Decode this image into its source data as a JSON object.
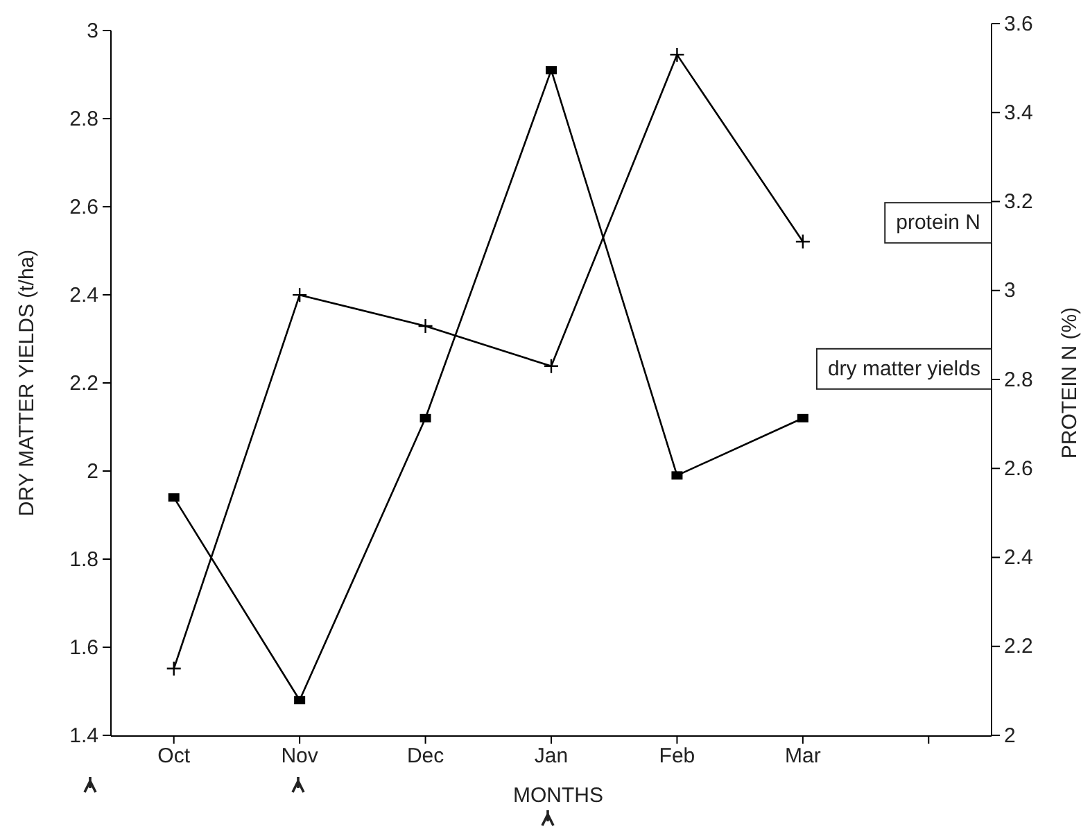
{
  "chart_data": {
    "type": "line",
    "xlabel": "MONTHS",
    "ylabel": "DRY MATTER YIELDS (t/ha)",
    "y2label": "PROTEIN N (%)",
    "categories": [
      "Oct",
      "Nov",
      "Dec",
      "Jan",
      "Feb",
      "Mar",
      null
    ],
    "ylim": [
      1.4,
      3
    ],
    "yticks": [
      1.4,
      1.6,
      1.8,
      2,
      2.2,
      2.4,
      2.6,
      2.8,
      3
    ],
    "y2lim": [
      2,
      3.6
    ],
    "y2ticks": [
      2,
      2.2,
      2.4,
      2.6,
      2.8,
      3,
      3.2,
      3.4,
      3.6
    ],
    "grid": false,
    "series": [
      {
        "name": "dry matter yields",
        "color": "#000000",
        "marker": "square",
        "values": [
          1.94,
          1.48,
          2.12,
          2.91,
          1.99,
          2.12,
          null
        ]
      },
      {
        "name": "protein N",
        "color": "#000000",
        "marker": "cross",
        "axis": "y2",
        "values": [
          2.15,
          2.99,
          2.92,
          2.83,
          3.53,
          3.11,
          null
        ]
      }
    ]
  }
}
